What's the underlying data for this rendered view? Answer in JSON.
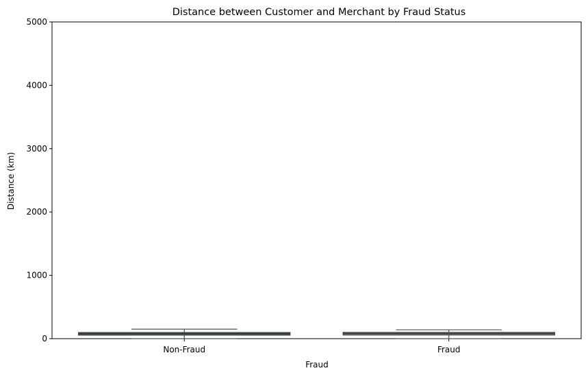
{
  "chart_data": {
    "type": "boxplot",
    "title": "Distance between Customer and Merchant by Fraud Status",
    "xlabel": "Fraud",
    "ylabel": "Distance (km)",
    "ylim": [
      0,
      5000
    ],
    "yticks": [
      0,
      1000,
      2000,
      3000,
      4000,
      5000
    ],
    "categories": [
      "Non-Fraud",
      "Fraud"
    ],
    "boxes": [
      {
        "category": "Non-Fraud",
        "whisker_low": 0,
        "q1": 55,
        "median": 78,
        "q3": 98,
        "whisker_high": 150,
        "color": "#4a6a7a"
      },
      {
        "category": "Fraud",
        "whisker_low": 0,
        "q1": 57,
        "median": 80,
        "q3": 100,
        "whisker_high": 140,
        "color": "#8c8c8c"
      }
    ],
    "grid": false,
    "legend": "none"
  }
}
